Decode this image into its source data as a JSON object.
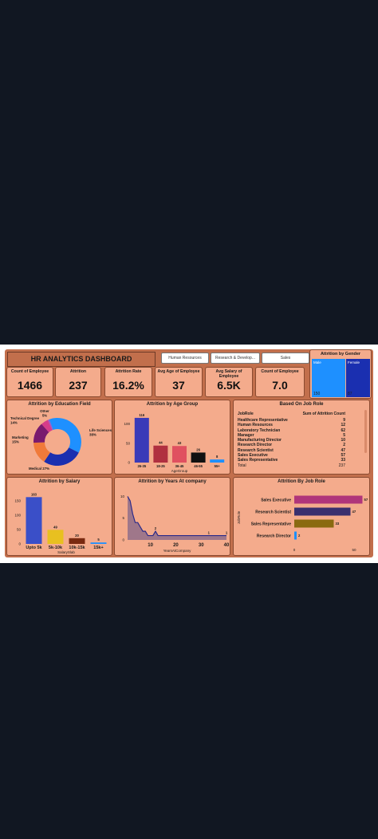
{
  "dashboard": {
    "title": "HR ANALYTICS DASHBOARD",
    "slicers": [
      "Human Resources",
      "Research & Develop...",
      "Sales"
    ]
  },
  "kpis": [
    {
      "label": "Count of Employee",
      "value": "1466"
    },
    {
      "label": "Attrition",
      "value": "237"
    },
    {
      "label": "Attrition Rate",
      "value": "16.2%"
    },
    {
      "label": "Avg Age of Employee",
      "value": "37"
    },
    {
      "label": "Avg Salary of Employee",
      "value": "6.5K"
    },
    {
      "label": "Count of Employee",
      "value": "7.0"
    }
  ],
  "colors": {
    "background": "#c26f4c",
    "card": "#f4ab8c",
    "male": "#1e90ff",
    "female": "#1a2fb0"
  },
  "job_role_table": {
    "title": "Based On Job Role",
    "col_role": "JobRole",
    "col_sum": "Sum of Attrition Count",
    "rows": [
      {
        "role": "Healthcare Representative",
        "value": "9"
      },
      {
        "role": "Human Resources",
        "value": "12"
      },
      {
        "role": "Laboratory Technician",
        "value": "62"
      },
      {
        "role": "Manager",
        "value": "5"
      },
      {
        "role": "Manufacturing Director",
        "value": "10"
      },
      {
        "role": "Research Director",
        "value": "2"
      },
      {
        "role": "Research Scientist",
        "value": "47"
      },
      {
        "role": "Sales Executive",
        "value": "57"
      },
      {
        "role": "Sales Representative",
        "value": "33"
      }
    ],
    "total_label": "Total",
    "total_value": "237"
  },
  "chart_data": [
    {
      "id": "gender",
      "type": "treemap",
      "title": "Attrition by Gender",
      "categories": [
        "Male",
        "Female"
      ],
      "values": [
        150,
        87
      ],
      "colors": [
        "#1e90ff",
        "#1a2fb0"
      ]
    },
    {
      "id": "education",
      "type": "pie",
      "title": "Attrition by Education Field",
      "categories": [
        "Life Sciences",
        "Medical",
        "Marketing",
        "Technical Degree",
        "Other",
        "Human Resources"
      ],
      "values": [
        38,
        27,
        15,
        14,
        5,
        1
      ],
      "labels": [
        "Life Sciences\n38%",
        "Medical 27%",
        "Marketing\n15%",
        "Technical Degree\n14%",
        "Other\n5%",
        ""
      ],
      "colors": [
        "#1e90ff",
        "#1a2fb0",
        "#f07a3a",
        "#7a1a6e",
        "#d63c8a",
        "#9b59d0"
      ]
    },
    {
      "id": "age",
      "type": "bar",
      "title": "Attrition by Age Group",
      "xlabel": "AgeGroup",
      "categories": [
        "26-35",
        "18-25",
        "36-45",
        "46-55",
        "55+"
      ],
      "values": [
        116,
        44,
        43,
        26,
        8
      ],
      "colors": [
        "#3a3ab8",
        "#b03040",
        "#e05060",
        "#111111",
        "#1e90ff"
      ],
      "yticks": [
        0,
        50,
        100
      ],
      "ylim": [
        0,
        120
      ]
    },
    {
      "id": "salary",
      "type": "bar",
      "title": "Attrition by Salary",
      "xlabel": "SalarySlab",
      "categories": [
        "Upto 5k",
        "5k-10k",
        "10k-15k",
        "15k+"
      ],
      "values": [
        163,
        49,
        20,
        5
      ],
      "colors": [
        "#3a4fc8",
        "#e8c020",
        "#7a2a10",
        "#1e90ff"
      ],
      "yticks": [
        0,
        50,
        100,
        150
      ],
      "ylim": [
        0,
        175
      ]
    },
    {
      "id": "years",
      "type": "area",
      "title": "Attrition by Years At company",
      "xlabel": "YearsAtCompany",
      "x": [
        1,
        2,
        3,
        4,
        5,
        6,
        7,
        8,
        9,
        10,
        11,
        12,
        13,
        14,
        15,
        16,
        17,
        18,
        19,
        20,
        21,
        22,
        23,
        24,
        25,
        26,
        27,
        28,
        29,
        30,
        31,
        32,
        33,
        34,
        35,
        36,
        37,
        38,
        39,
        40
      ],
      "values": [
        10,
        9,
        6,
        4,
        4,
        3,
        2,
        2,
        1,
        1,
        1,
        2,
        1,
        1,
        1,
        1,
        1,
        1,
        1,
        1,
        1,
        1,
        1,
        1,
        1,
        1,
        1,
        1,
        1,
        1,
        1,
        1,
        1,
        1,
        1,
        1,
        1,
        1,
        1,
        1
      ],
      "point_labels": [
        {
          "x": 12,
          "label": "2"
        },
        {
          "x": 33,
          "label": "1"
        },
        {
          "x": 40,
          "label": "1"
        }
      ],
      "xticks": [
        10,
        20,
        30,
        40
      ],
      "yticks": [
        0,
        5,
        10
      ],
      "ylim": [
        0,
        11
      ],
      "xlim": [
        1,
        40
      ]
    },
    {
      "id": "jobrole",
      "type": "bar",
      "orientation": "horizontal",
      "title": "Attrition By Job Role",
      "ylabel": "JobRole",
      "categories": [
        "Sales Executive",
        "Research Scientist",
        "Sales Representative",
        "Research Director"
      ],
      "values": [
        57,
        47,
        33,
        2
      ],
      "colors": [
        "#b0357a",
        "#3a2f6e",
        "#8a6a10",
        "#1e90ff"
      ],
      "xticks": [
        0,
        50
      ],
      "xlim": [
        0,
        60
      ]
    }
  ]
}
